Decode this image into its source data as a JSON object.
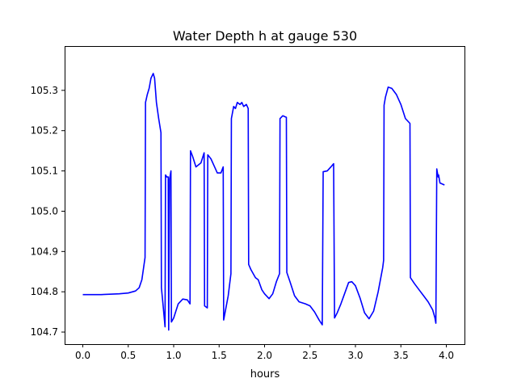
{
  "chart_data": {
    "type": "line",
    "title": "Water Depth h at gauge 530",
    "xlabel": "hours",
    "ylabel": "",
    "xlim": [
      -0.2,
      4.2
    ],
    "ylim": [
      104.67,
      105.41
    ],
    "xticks": [
      0.0,
      0.5,
      1.0,
      1.5,
      2.0,
      2.5,
      3.0,
      3.5,
      4.0
    ],
    "xtick_labels": [
      "0.0",
      "0.5",
      "1.0",
      "1.5",
      "2.0",
      "2.5",
      "3.0",
      "3.5",
      "4.0"
    ],
    "yticks": [
      104.7,
      104.8,
      104.9,
      105.0,
      105.1,
      105.2,
      105.3
    ],
    "ytick_labels": [
      "104.7",
      "104.8",
      "104.9",
      "105.0",
      "105.1",
      "105.2",
      "105.3"
    ],
    "grid": false,
    "legend": "none",
    "series": [
      {
        "color": "#0000ff",
        "points": [
          [
            0.0,
            104.793
          ],
          [
            0.2,
            104.793
          ],
          [
            0.4,
            104.795
          ],
          [
            0.5,
            104.797
          ],
          [
            0.58,
            104.802
          ],
          [
            0.62,
            104.81
          ],
          [
            0.65,
            104.83
          ],
          [
            0.685,
            104.885
          ],
          [
            0.69,
            105.27
          ],
          [
            0.71,
            105.29
          ],
          [
            0.73,
            105.305
          ],
          [
            0.75,
            105.33
          ],
          [
            0.775,
            105.342
          ],
          [
            0.79,
            105.33
          ],
          [
            0.81,
            105.27
          ],
          [
            0.835,
            105.23
          ],
          [
            0.86,
            105.195
          ],
          [
            0.865,
            104.81
          ],
          [
            0.88,
            104.775
          ],
          [
            0.905,
            104.713
          ],
          [
            0.91,
            105.09
          ],
          [
            0.925,
            105.085
          ],
          [
            0.94,
            105.085
          ],
          [
            0.945,
            104.705
          ],
          [
            0.955,
            105.08
          ],
          [
            0.97,
            105.1
          ],
          [
            0.975,
            104.725
          ],
          [
            1.0,
            104.735
          ],
          [
            1.05,
            104.77
          ],
          [
            1.1,
            104.782
          ],
          [
            1.15,
            104.78
          ],
          [
            1.18,
            104.77
          ],
          [
            1.185,
            105.15
          ],
          [
            1.21,
            105.135
          ],
          [
            1.245,
            105.11
          ],
          [
            1.3,
            105.12
          ],
          [
            1.335,
            105.145
          ],
          [
            1.34,
            104.765
          ],
          [
            1.37,
            104.76
          ],
          [
            1.375,
            105.14
          ],
          [
            1.41,
            105.13
          ],
          [
            1.45,
            105.11
          ],
          [
            1.48,
            105.095
          ],
          [
            1.52,
            105.095
          ],
          [
            1.545,
            105.11
          ],
          [
            1.55,
            104.73
          ],
          [
            1.6,
            104.79
          ],
          [
            1.63,
            104.845
          ],
          [
            1.635,
            105.23
          ],
          [
            1.66,
            105.26
          ],
          [
            1.68,
            105.255
          ],
          [
            1.7,
            105.27
          ],
          [
            1.73,
            105.265
          ],
          [
            1.75,
            105.27
          ],
          [
            1.77,
            105.26
          ],
          [
            1.8,
            105.265
          ],
          [
            1.82,
            105.255
          ],
          [
            1.825,
            104.868
          ],
          [
            1.85,
            104.855
          ],
          [
            1.9,
            104.835
          ],
          [
            1.93,
            104.83
          ],
          [
            1.97,
            104.805
          ],
          [
            2.0,
            104.795
          ],
          [
            2.05,
            104.783
          ],
          [
            2.09,
            104.795
          ],
          [
            2.13,
            104.825
          ],
          [
            2.165,
            104.845
          ],
          [
            2.17,
            105.23
          ],
          [
            2.2,
            105.237
          ],
          [
            2.24,
            105.233
          ],
          [
            2.245,
            104.848
          ],
          [
            2.28,
            104.825
          ],
          [
            2.33,
            104.79
          ],
          [
            2.38,
            104.775
          ],
          [
            2.45,
            104.77
          ],
          [
            2.5,
            104.765
          ],
          [
            2.55,
            104.75
          ],
          [
            2.6,
            104.73
          ],
          [
            2.635,
            104.718
          ],
          [
            2.645,
            105.098
          ],
          [
            2.69,
            105.1
          ],
          [
            2.73,
            105.11
          ],
          [
            2.76,
            105.118
          ],
          [
            2.77,
            104.735
          ],
          [
            2.8,
            104.748
          ],
          [
            2.84,
            104.77
          ],
          [
            2.88,
            104.795
          ],
          [
            2.925,
            104.823
          ],
          [
            2.96,
            104.825
          ],
          [
            3.0,
            104.815
          ],
          [
            3.05,
            104.785
          ],
          [
            3.1,
            104.748
          ],
          [
            3.15,
            104.733
          ],
          [
            3.2,
            104.752
          ],
          [
            3.25,
            104.8
          ],
          [
            3.3,
            104.86
          ],
          [
            3.31,
            104.878
          ],
          [
            3.315,
            105.263
          ],
          [
            3.33,
            105.283
          ],
          [
            3.36,
            105.308
          ],
          [
            3.4,
            105.305
          ],
          [
            3.45,
            105.29
          ],
          [
            3.5,
            105.265
          ],
          [
            3.55,
            105.23
          ],
          [
            3.6,
            105.218
          ],
          [
            3.605,
            104.835
          ],
          [
            3.65,
            104.82
          ],
          [
            3.7,
            104.805
          ],
          [
            3.75,
            104.79
          ],
          [
            3.8,
            104.775
          ],
          [
            3.85,
            104.755
          ],
          [
            3.875,
            104.735
          ],
          [
            3.885,
            104.722
          ],
          [
            3.895,
            105.105
          ],
          [
            3.91,
            105.085
          ],
          [
            3.915,
            105.09
          ],
          [
            3.93,
            105.07
          ],
          [
            3.96,
            105.067
          ],
          [
            3.98,
            105.065
          ]
        ]
      }
    ]
  }
}
